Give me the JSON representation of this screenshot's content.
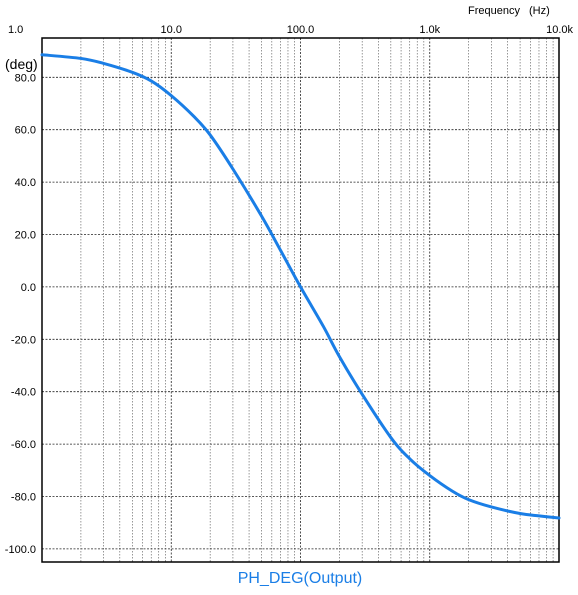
{
  "chart_data": {
    "type": "line",
    "xlabel": "Frequency",
    "xunit": "(Hz)",
    "ylabel": "(deg)",
    "x_scale": "log",
    "xlim": [
      1,
      10000
    ],
    "ylim": [
      -105,
      95
    ],
    "x_ticks": [
      {
        "value": 1,
        "label": "1.0"
      },
      {
        "value": 10,
        "label": "10.0"
      },
      {
        "value": 100,
        "label": "100.0"
      },
      {
        "value": 1000,
        "label": "1.0k"
      },
      {
        "value": 10000,
        "label": "10.0k"
      }
    ],
    "y_ticks": [
      {
        "value": 80,
        "label": "80.0"
      },
      {
        "value": 60,
        "label": "60.0"
      },
      {
        "value": 40,
        "label": "40.0"
      },
      {
        "value": 20,
        "label": "20.0"
      },
      {
        "value": 0,
        "label": "0.0"
      },
      {
        "value": -20,
        "label": "-20.0"
      },
      {
        "value": -40,
        "label": "-40.0"
      },
      {
        "value": -60,
        "label": "-60.0"
      },
      {
        "value": -80,
        "label": "-80.0"
      },
      {
        "value": -100,
        "label": "-100.0"
      }
    ],
    "grid": true,
    "legend": "bottom",
    "series": [
      {
        "name": "PH_DEG(Output)",
        "color": "#1a7ee6",
        "points": [
          {
            "x": 1,
            "y": 88.6
          },
          {
            "x": 2,
            "y": 87.2
          },
          {
            "x": 3,
            "y": 85.3
          },
          {
            "x": 5,
            "y": 81.9
          },
          {
            "x": 7,
            "y": 78.6
          },
          {
            "x": 10,
            "y": 73.0
          },
          {
            "x": 15,
            "y": 65.0
          },
          {
            "x": 20,
            "y": 58.0
          },
          {
            "x": 30,
            "y": 45.0
          },
          {
            "x": 50,
            "y": 27.0
          },
          {
            "x": 70,
            "y": 14.0
          },
          {
            "x": 100,
            "y": 0.0
          },
          {
            "x": 150,
            "y": -15.0
          },
          {
            "x": 200,
            "y": -26.6
          },
          {
            "x": 300,
            "y": -41.0
          },
          {
            "x": 500,
            "y": -57.5
          },
          {
            "x": 700,
            "y": -65.6
          },
          {
            "x": 1000,
            "y": -72.0
          },
          {
            "x": 1500,
            "y": -78.0
          },
          {
            "x": 2000,
            "y": -81.2
          },
          {
            "x": 3000,
            "y": -84.0
          },
          {
            "x": 5000,
            "y": -86.5
          },
          {
            "x": 7000,
            "y": -87.4
          },
          {
            "x": 10000,
            "y": -88.2
          }
        ]
      }
    ]
  }
}
